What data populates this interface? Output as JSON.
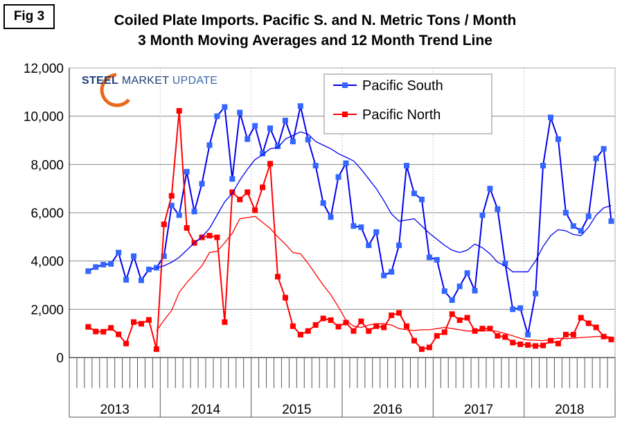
{
  "figure_label": "Fig 3",
  "logo_text": "STEEL MARKET UPDATE",
  "colors": {
    "south": "#0000ee",
    "south_marker": "#3366ff",
    "north": "#ff0000"
  },
  "chart_data": {
    "type": "line",
    "title": "Coiled Plate Imports. Pacific S. and N. Metric Tons / Month",
    "subtitle": "3 Month Moving Averages and 12 Month Trend Line",
    "xlabel": "",
    "ylabel": "",
    "ylim": [
      0,
      12000
    ],
    "yticks": [
      "0",
      "2,000",
      "4,000",
      "6,000",
      "8,000",
      "10,000",
      "12,000"
    ],
    "ytick_values": [
      0,
      2000,
      4000,
      6000,
      8000,
      10000,
      12000
    ],
    "years": [
      "2013",
      "2014",
      "2015",
      "2016",
      "2017",
      "2018"
    ],
    "grid": true,
    "legend_position": "top-center",
    "x_start": "Mar 2013",
    "trend_start": "Dec 2013",
    "series": [
      {
        "name": "Pacific South",
        "kind": "moving_average_3m",
        "values": [
          3580,
          3750,
          3850,
          3880,
          4350,
          3220,
          4200,
          3200,
          3650,
          3720,
          4200,
          6300,
          5900,
          7700,
          6050,
          7200,
          8800,
          10000,
          10380,
          7400,
          10150,
          9050,
          9600,
          8450,
          9500,
          8750,
          9820,
          8950,
          10420,
          9030,
          7950,
          6400,
          5820,
          7480,
          8050,
          5450,
          5400,
          4650,
          5200,
          3400,
          3550,
          4650,
          7950,
          6800,
          6550,
          4150,
          4050,
          2750,
          2380,
          2950,
          3500,
          2770,
          5900,
          7000,
          6150,
          3900,
          2000,
          2050,
          950,
          2650,
          7950,
          9950,
          9050,
          6000,
          5450,
          5250,
          5850,
          8250,
          8650,
          5650
        ]
      },
      {
        "name": "Pacific North",
        "kind": "moving_average_3m",
        "values": [
          1270,
          1080,
          1070,
          1230,
          960,
          580,
          1470,
          1400,
          1560,
          350,
          5520,
          6700,
          10220,
          5370,
          4750,
          4980,
          5050,
          4980,
          1470,
          6850,
          6550,
          6850,
          6100,
          7050,
          8030,
          3350,
          2480,
          1300,
          950,
          1100,
          1350,
          1620,
          1550,
          1280,
          1450,
          1100,
          1500,
          1100,
          1300,
          1250,
          1750,
          1850,
          1300,
          700,
          350,
          420,
          900,
          1050,
          1800,
          1550,
          1650,
          1100,
          1200,
          1200,
          900,
          850,
          620,
          550,
          520,
          480,
          500,
          700,
          580,
          950,
          950,
          1650,
          1420,
          1250,
          870,
          750
        ]
      },
      {
        "name": "Pacific South trend",
        "kind": "trend_12m",
        "values": [
          3720,
          3800,
          3950,
          4150,
          4450,
          4750,
          5000,
          5350,
          5900,
          6450,
          6800,
          7350,
          7800,
          8200,
          8400,
          8650,
          8700,
          9050,
          9200,
          9350,
          9250,
          8950,
          8800,
          8650,
          8450,
          8300,
          8150,
          7800,
          7400,
          7000,
          6500,
          5950,
          5650,
          5700,
          5750,
          5450,
          5150,
          4900,
          4650,
          4450,
          4350,
          4450,
          4700,
          4550,
          4300,
          3950,
          3800,
          3550,
          3550,
          3550,
          4000,
          4600,
          5050,
          5300,
          5250,
          5100,
          5050,
          5400,
          5900,
          6200,
          6300
        ]
      },
      {
        "name": "Pacific North trend",
        "kind": "trend_12m",
        "values": [
          1100,
          1550,
          1950,
          2700,
          3100,
          3450,
          3800,
          4350,
          4400,
          4750,
          5150,
          5750,
          5800,
          5850,
          5600,
          5350,
          5000,
          4700,
          4350,
          4300,
          3900,
          3450,
          3000,
          2600,
          2100,
          1550,
          1300,
          1250,
          1350,
          1400,
          1400,
          1350,
          1200,
          1150,
          1120,
          1150,
          1150,
          1200,
          1250,
          1200,
          1150,
          1100,
          1100,
          1100,
          1120,
          1080,
          1000,
          900,
          800,
          720,
          720,
          700,
          750,
          800,
          780,
          800,
          830,
          850,
          870,
          880,
          850
        ]
      }
    ]
  }
}
